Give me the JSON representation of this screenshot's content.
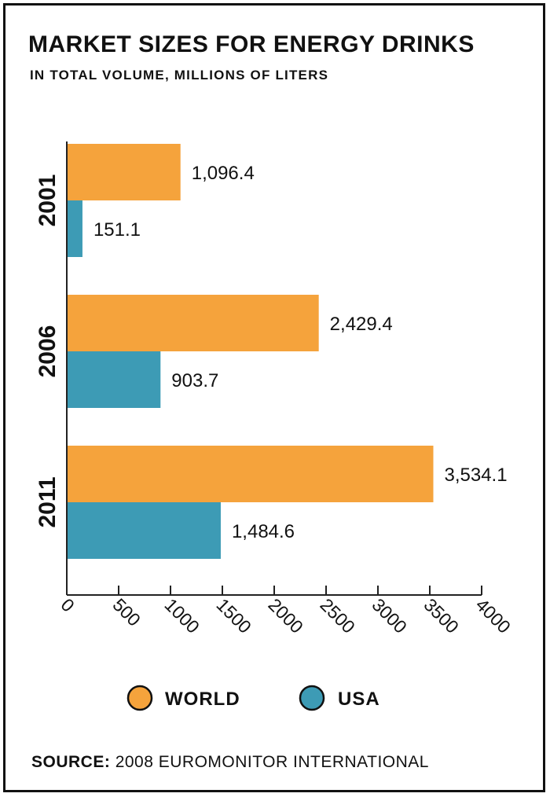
{
  "title": "MARKET SIZES FOR ENERGY DRINKS",
  "subtitle": "IN TOTAL VOLUME, MILLIONS OF LITERS",
  "source_label": "SOURCE:",
  "source_text": "2008 EUROMONITOR INTERNATIONAL",
  "colors": {
    "world": "#f5a33c",
    "usa": "#3d9bb5",
    "axis": "#222222",
    "text": "#111111"
  },
  "chart_data": {
    "type": "bar",
    "orientation": "horizontal",
    "title": "MARKET SIZES FOR ENERGY DRINKS",
    "subtitle": "IN TOTAL VOLUME, MILLIONS OF LITERS",
    "categories": [
      "2001",
      "2006",
      "2011"
    ],
    "series": [
      {
        "name": "WORLD",
        "values": [
          1096.4,
          2429.4,
          3534.1
        ],
        "labels": [
          "1,096.4",
          "2,429.4",
          "3,534.1"
        ],
        "color": "#f5a33c"
      },
      {
        "name": "USA",
        "values": [
          151.1,
          903.7,
          1484.6
        ],
        "labels": [
          "151.1",
          "903.7",
          "1,484.6"
        ],
        "color": "#3d9bb5"
      }
    ],
    "xlim": [
      0,
      4000
    ],
    "xticks": [
      0,
      500,
      1000,
      1500,
      2000,
      2500,
      3000,
      3500,
      4000
    ],
    "grid": false,
    "legend": "bottom"
  }
}
